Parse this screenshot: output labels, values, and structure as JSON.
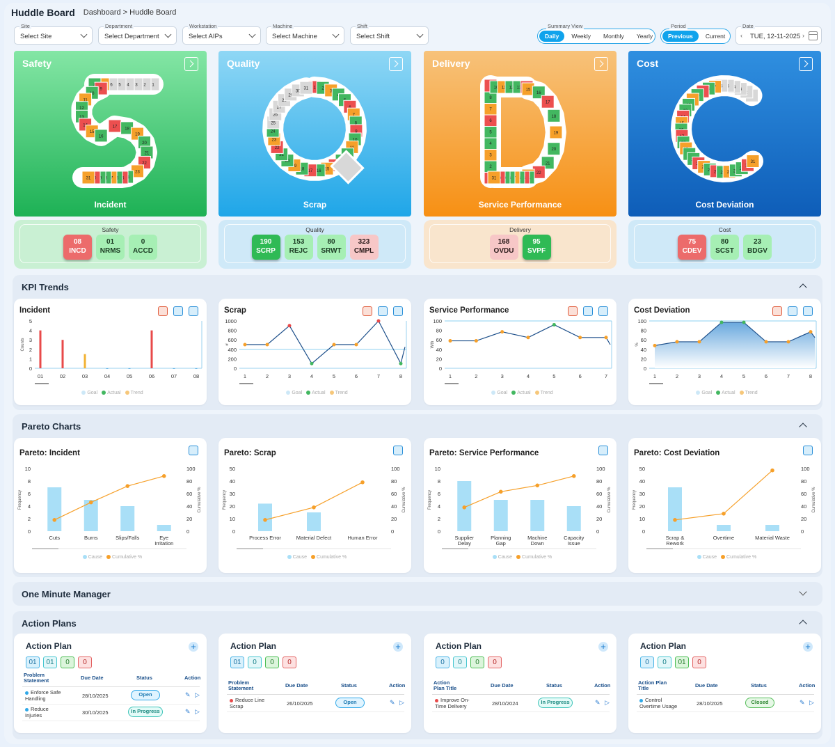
{
  "header": {
    "title": "Huddle Board",
    "breadcrumb": "Dashboard > Huddle Board"
  },
  "filters": [
    {
      "label": "Site",
      "value": "Select Site"
    },
    {
      "label": "Department",
      "value": "Select Department"
    },
    {
      "label": "Workstation",
      "value": "Select AIPs"
    },
    {
      "label": "Machine",
      "value": "Select Machine"
    },
    {
      "label": "Shift",
      "value": "Select Shift"
    }
  ],
  "summary_view": {
    "label": "Summary View",
    "options": [
      "Daily",
      "Weekly",
      "Monthly",
      "Yearly"
    ],
    "selected": "Daily"
  },
  "period": {
    "label": "Period",
    "options": [
      "Previous",
      "Current"
    ],
    "selected": "Previous"
  },
  "date": {
    "label": "Date",
    "value": "TUE, 12-11-2025",
    "prev": "‹",
    "next": "›"
  },
  "cards": [
    {
      "title": "Safety",
      "letter": "S",
      "subtitle": "Incident",
      "colors": [
        "#84e6a5",
        "#1db155"
      ]
    },
    {
      "title": "Quality",
      "letter": "Q",
      "subtitle": "Scrap",
      "colors": [
        "#8fd7f5",
        "#1fa6e8"
      ]
    },
    {
      "title": "Delivery",
      "letter": "D",
      "subtitle": "Service Performance",
      "colors": [
        "#f7c27a",
        "#f79014"
      ]
    },
    {
      "title": "Cost",
      "letter": "C",
      "subtitle": "Cost Deviation",
      "colors": [
        "#2f8fe0",
        "#0e5db8"
      ]
    }
  ],
  "kpi_groups": [
    {
      "label": "Safety",
      "bg": "#c9f0d3",
      "items": [
        {
          "value": "08",
          "code": "INCD",
          "style": "r"
        },
        {
          "value": "01",
          "code": "NRMS",
          "style": "g"
        },
        {
          "value": "0",
          "code": "ACCD",
          "style": "g"
        }
      ]
    },
    {
      "label": "Quality",
      "bg": "#cfe9f8",
      "items": [
        {
          "value": "190",
          "code": "SCRP",
          "style": "gg"
        },
        {
          "value": "153",
          "code": "REJC",
          "style": "g"
        },
        {
          "value": "80",
          "code": "SRWT",
          "style": "g"
        },
        {
          "value": "323",
          "code": "CMPL",
          "style": "pr"
        }
      ]
    },
    {
      "label": "Delivery",
      "bg": "#f9e5cd",
      "items": [
        {
          "value": "168",
          "code": "OVDU",
          "style": "pr"
        },
        {
          "value": "95",
          "code": "SVPF",
          "style": "gg"
        }
      ]
    },
    {
      "label": "Cost",
      "bg": "#cfe9f8",
      "items": [
        {
          "value": "75",
          "code": "CDEV",
          "style": "r"
        },
        {
          "value": "80",
          "code": "SCST",
          "style": "g"
        },
        {
          "value": "23",
          "code": "BDGV",
          "style": "g"
        }
      ]
    }
  ],
  "sections": {
    "kpi_trends": "KPI Trends",
    "pareto": "Pareto Charts",
    "omm": "One Minute Manager",
    "action_plans": "Action Plans"
  },
  "trend_legend": [
    "Goal",
    "Actual",
    "Trend"
  ],
  "pareto_legend": [
    "Cause",
    "Cumulative %"
  ],
  "chart_data": [
    {
      "type": "bar",
      "title": "Incident",
      "ylabel": "Counts",
      "categories": [
        "01",
        "02",
        "03",
        "04",
        "05",
        "06",
        "07",
        "08"
      ],
      "values": [
        4,
        3,
        1.5,
        0,
        0,
        4,
        0,
        0
      ],
      "bar_colors": [
        "#e84a4a",
        "#e84a4a",
        "#f2b233",
        "#3da0e0",
        "#3da0e0",
        "#e84a4a",
        "#3da0e0",
        "#3da0e0"
      ],
      "ylim": [
        0,
        5
      ],
      "yticks": [
        "0",
        "1",
        "2",
        "3",
        "4",
        "5"
      ]
    },
    {
      "type": "line",
      "title": "Scrap",
      "ylabel": "#",
      "categories": [
        "1",
        "2",
        "3",
        "4",
        "5",
        "6",
        "7",
        "8"
      ],
      "values": [
        500,
        500,
        900,
        100,
        500,
        500,
        1000,
        100
      ],
      "tail": 450,
      "goal": 400,
      "ylim": [
        0,
        1000
      ],
      "yticks": [
        "0",
        "200",
        "400",
        "600",
        "800",
        "1000"
      ]
    },
    {
      "type": "line",
      "title": "Service Performance",
      "ylabel": "Wth",
      "categories": [
        "1",
        "2",
        "3",
        "4",
        "5",
        "6",
        "7"
      ],
      "values": [
        58,
        58,
        77,
        65,
        92,
        65,
        65
      ],
      "tail": 50,
      "goal": 100,
      "ylim": [
        0,
        100
      ],
      "yticks": [
        "0",
        "20",
        "40",
        "60",
        "80",
        "100"
      ]
    },
    {
      "type": "area",
      "title": "Cost Deviation",
      "ylabel": "%",
      "categories": [
        "1",
        "2",
        "3",
        "4",
        "5",
        "6",
        "7",
        "8"
      ],
      "values": [
        48,
        56,
        56,
        97,
        97,
        56,
        56,
        77
      ],
      "tail": 65,
      "goal": 100,
      "ylim": [
        0,
        100
      ],
      "yticks": [
        "0",
        "20",
        "40",
        "60",
        "80",
        "100"
      ]
    },
    {
      "type": "bar",
      "title": "Pareto: Incident",
      "ylabel": "Frequency",
      "y2label": "Cumulative %",
      "categories": [
        "Cuts",
        "Burns",
        "Slips/Falls",
        "Eye\nIrritation"
      ],
      "values": [
        7,
        5,
        4,
        1
      ],
      "cumulative": [
        18,
        46,
        72,
        88
      ],
      "ylim": [
        0,
        10
      ],
      "yticks": [
        "0",
        "2",
        "4",
        "6",
        "8",
        "10"
      ],
      "y2ticks": [
        "0",
        "20",
        "40",
        "60",
        "80",
        "100"
      ]
    },
    {
      "type": "bar",
      "title": "Pareto: Scrap",
      "ylabel": "Frequency",
      "y2label": "Cumulative %",
      "categories": [
        "Process Error",
        "Material Defect",
        "Human Error"
      ],
      "values": [
        22,
        15,
        0
      ],
      "cumulative": [
        18,
        38,
        78
      ],
      "ylim": [
        0,
        50
      ],
      "yticks": [
        "0",
        "10",
        "20",
        "30",
        "40",
        "50"
      ],
      "y2ticks": [
        "0",
        "20",
        "40",
        "60",
        "80",
        "100"
      ]
    },
    {
      "type": "bar",
      "title": "Pareto: Service Performance",
      "ylabel": "Frequency",
      "y2label": "Cumulative %",
      "categories": [
        "Supplier\nDelay",
        "Planning\nGap",
        "Machine\nDown",
        "Capacity\nIssue"
      ],
      "values": [
        8,
        5,
        5,
        4
      ],
      "cumulative": [
        38,
        63,
        73,
        88
      ],
      "ylim": [
        0,
        10
      ],
      "yticks": [
        "0",
        "2",
        "4",
        "6",
        "8",
        "10"
      ],
      "y2ticks": [
        "0",
        "20",
        "40",
        "60",
        "80",
        "100"
      ]
    },
    {
      "type": "bar",
      "title": "Pareto: Cost Deviation",
      "ylabel": "Frequency",
      "y2label": "Cumulative %",
      "categories": [
        "Scrap &\nRework",
        "Overtime",
        "Material Waste"
      ],
      "values": [
        35,
        5,
        5
      ],
      "cumulative": [
        18,
        28,
        97
      ],
      "ylim": [
        0,
        50
      ],
      "yticks": [
        "0",
        "10",
        "20",
        "30",
        "40",
        "50"
      ],
      "y2ticks": [
        "0",
        "20",
        "40",
        "60",
        "80",
        "100"
      ]
    }
  ],
  "action_plans": [
    {
      "title": "Action Plan",
      "counts": [
        "01",
        "01",
        "0",
        "0"
      ],
      "headers": [
        "Problem\nStatement",
        "Due Date",
        "Status",
        "Action"
      ],
      "rows": [
        {
          "text": "Enforce Safe\nHandling",
          "due": "28/10/2025",
          "status": "Open",
          "flag": "#2fa8e8"
        },
        {
          "text": "Reduce\nInjuries",
          "due": "30/10/2025",
          "status": "In Progress",
          "flag": "#2fa8e8"
        }
      ]
    },
    {
      "title": "Action Plan",
      "counts": [
        "01",
        "0",
        "0",
        "0"
      ],
      "headers": [
        "Problem\nStatement",
        "Due Date",
        "Status",
        "Action"
      ],
      "rows": [
        {
          "text": "Reduce Line\nScrap",
          "due": "26/10/2025",
          "status": "Open",
          "flag": "#e84a4a"
        }
      ]
    },
    {
      "title": "Action Plan",
      "counts": [
        "0",
        "0",
        "0",
        "0"
      ],
      "headers": [
        "Action\nPlan Title",
        "Due Date",
        "Status",
        "Action"
      ],
      "rows": [
        {
          "text": "Improve On-\nTime Delivery",
          "due": "28/10/2024",
          "status": "In Progress",
          "flag": "#e84a4a"
        }
      ]
    },
    {
      "title": "Action Plan",
      "counts": [
        "0",
        "0",
        "01",
        "0"
      ],
      "headers": [
        "Action Plan\nTitle",
        "Due Date",
        "Status",
        "Action"
      ],
      "rows": [
        {
          "text": "Control\nOvertime Usage",
          "due": "28/10/2025",
          "status": "Closed",
          "flag": "#2fa8e8"
        }
      ]
    }
  ],
  "letter_cells": {
    "S": [
      "31",
      "30",
      "29",
      "28",
      "27",
      "26",
      "25",
      "24",
      "23",
      "22",
      "21",
      "20",
      "19",
      "18",
      "17",
      "16",
      "15",
      "14",
      "13",
      "12",
      "11",
      "10",
      "9",
      "8",
      "7",
      "6",
      "5",
      "4",
      "3",
      "2",
      "1"
    ],
    "Q": [
      "31",
      "30",
      "29",
      "28",
      "27",
      "26",
      "25",
      "24",
      "23",
      "22",
      "21",
      "20",
      "19",
      "18",
      "17",
      "16",
      "15",
      "14",
      "13",
      "12",
      "11",
      "10",
      "9",
      "8",
      "7",
      "6",
      "5",
      "4",
      "3",
      "2",
      "1"
    ],
    "D": [
      "31",
      "30",
      "29",
      "28",
      "27",
      "26",
      "25",
      "24",
      "23",
      "22",
      "21",
      "20",
      "19",
      "18",
      "17",
      "16",
      "15",
      "14",
      "13",
      "12",
      "11",
      "10",
      "9",
      "8",
      "7",
      "6",
      "5",
      "4",
      "3",
      "2",
      "1"
    ],
    "C": [
      "31",
      "30",
      "29",
      "28",
      "27",
      "26",
      "25",
      "24",
      "23",
      "22",
      "21",
      "20",
      "19",
      "18",
      "17",
      "16",
      "15",
      "14",
      "13",
      "12",
      "11",
      "10",
      "9",
      "8",
      "7",
      "6",
      "5",
      "4",
      "3",
      "2",
      "1"
    ]
  },
  "palette": {
    "red": "#ec4f4f",
    "green": "#42b760",
    "orange": "#f6a02a",
    "grey": "#d8d8d8",
    "accent": "#10a3ec"
  }
}
